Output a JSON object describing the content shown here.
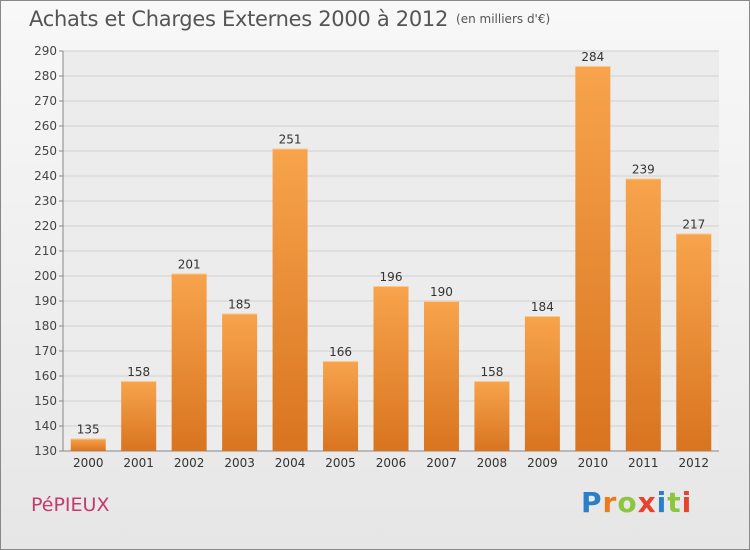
{
  "title": "Achats et Charges Externes 2000 à 2012",
  "title_unit": "(en milliers d'€)",
  "commune": "PéPIEUX",
  "logo": {
    "text": "Proxiti",
    "letters": [
      {
        "ch": "P",
        "color": "#2a7fc8"
      },
      {
        "ch": "r",
        "color": "#e87c1e"
      },
      {
        "ch": "o",
        "color": "#8cc63f"
      },
      {
        "ch": "x",
        "color": "#e8412c"
      },
      {
        "ch": "i",
        "color": "#2a7fc8"
      },
      {
        "ch": "t",
        "color": "#8cc63f"
      },
      {
        "ch": "i",
        "color": "#e8412c"
      }
    ]
  },
  "colors": {
    "bar_light": "#f7a44c",
    "bar_dark": "#d97420",
    "title": "#555555",
    "commune": "#c33a6d"
  },
  "chart_data": {
    "type": "bar",
    "categories": [
      "2000",
      "2001",
      "2002",
      "2003",
      "2004",
      "2005",
      "2006",
      "2007",
      "2008",
      "2009",
      "2010",
      "2011",
      "2012"
    ],
    "values": [
      135,
      158,
      201,
      185,
      251,
      166,
      196,
      190,
      158,
      184,
      284,
      239,
      217
    ],
    "ylim": [
      130,
      290
    ],
    "yticks": [
      130,
      140,
      150,
      160,
      170,
      180,
      190,
      200,
      210,
      220,
      230,
      240,
      250,
      260,
      270,
      280,
      290
    ],
    "grid": true,
    "data_labels": true
  }
}
